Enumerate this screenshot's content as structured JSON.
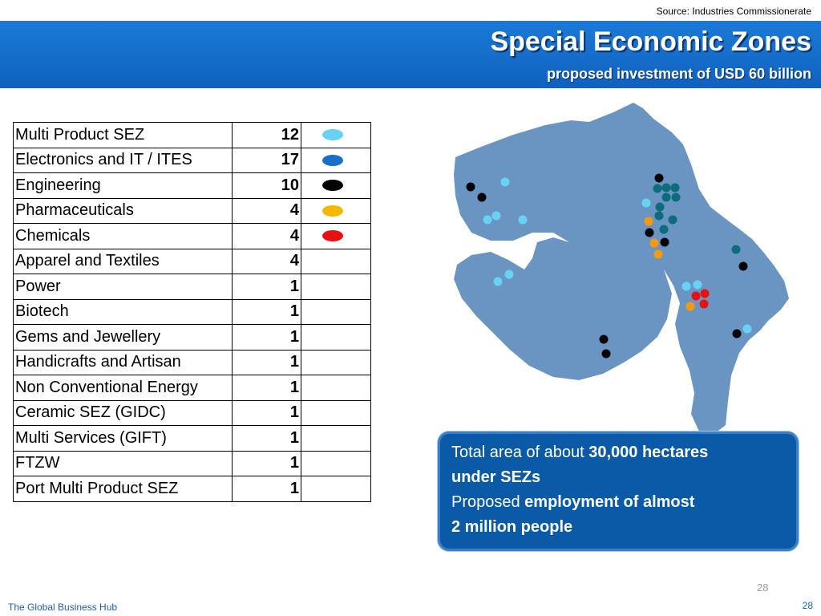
{
  "source": "Source: Industries Commissionerate",
  "header": {
    "title": "Special Economic Zones",
    "subtitle": "proposed investment of USD  60 billion"
  },
  "table": {
    "rows": [
      {
        "name": " Multi Product SEZ",
        "count": "12",
        "color": "#66d3f5"
      },
      {
        "name": "Electronics and IT / ITES",
        "count": "17",
        "color": "#1a6fc9"
      },
      {
        "name": "Engineering",
        "count": "10",
        "color": "#000000"
      },
      {
        "name": "Pharmaceuticals",
        "count": "4",
        "color": "#f5b800"
      },
      {
        "name": "Chemicals",
        "count": "4",
        "color": "#e81010"
      },
      {
        "name": "Apparel and Textiles",
        "count": "4",
        "color": ""
      },
      {
        "name": "Power",
        "count": "1",
        "color": ""
      },
      {
        "name": "Biotech",
        "count": "1",
        "color": ""
      },
      {
        "name": "Gems and Jewellery",
        "count": "1",
        "color": ""
      },
      {
        "name": "Handicrafts and Artisan",
        "count": "1",
        "color": ""
      },
      {
        "name": " Non Conventional Energy",
        "count": "1",
        "color": ""
      },
      {
        "name": " Ceramic SEZ (GIDC)",
        "count": "1",
        "color": ""
      },
      {
        "name": " Multi Services (GIFT)",
        "count": "1",
        "color": ""
      },
      {
        "name": "FTZW",
        "count": "1",
        "color": ""
      },
      {
        "name": "Port Multi Product SEZ",
        "count": "1",
        "color": ""
      }
    ]
  },
  "map": {
    "fill": "#6a95c3",
    "marker_colors": {
      "light_blue": "#66d3f5",
      "teal": "#0e6a7d",
      "black": "#000000",
      "orange": "#f59a10",
      "red": "#e81010"
    }
  },
  "info": {
    "line1_prefix": "Total area of about ",
    "line1_bold": "30,000 hectares",
    "line2_bold": "under SEZs",
    "line3_prefix": "Proposed ",
    "line3_bold": "employment of almost",
    "line4_bold": "2 million people"
  },
  "page_number": "28",
  "footer": {
    "left": "The Global Business Hub",
    "right": "28"
  }
}
